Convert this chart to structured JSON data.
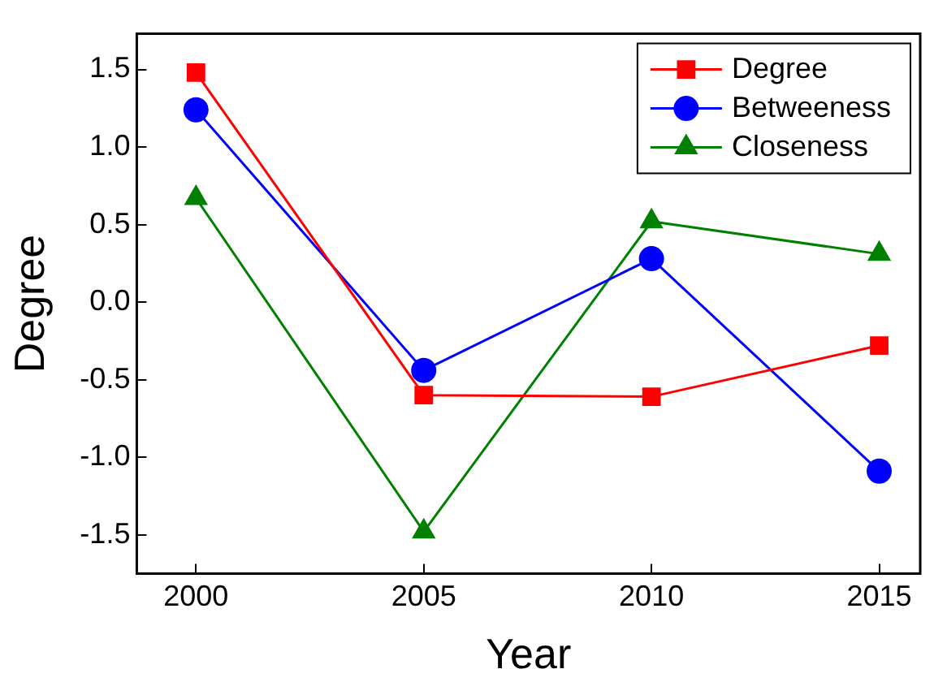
{
  "chart_data": {
    "type": "line",
    "xlabel": "Year",
    "ylabel": "Degree",
    "x": [
      2000,
      2005,
      2010,
      2015
    ],
    "series": [
      {
        "name": "Degree",
        "color": "#ff0000",
        "marker": "square",
        "values": [
          1.48,
          -0.6,
          -0.61,
          -0.28
        ]
      },
      {
        "name": "Betweeness",
        "color": "#0000ff",
        "marker": "circle",
        "values": [
          1.24,
          -0.44,
          0.28,
          -1.09
        ]
      },
      {
        "name": "Closeness",
        "color": "#008000",
        "marker": "triangle",
        "values": [
          0.67,
          -1.48,
          0.52,
          0.31
        ]
      }
    ],
    "xlim": [
      1998.7,
      2015.9
    ],
    "xticks": [
      2000,
      2005,
      2010,
      2015
    ],
    "ylim": [
      -1.75,
      1.73
    ],
    "yticks": [
      {
        "value": -1.5,
        "label": "-1.5"
      },
      {
        "value": -1,
        "label": "-1.0"
      },
      {
        "value": -0.5,
        "label": "-0.5"
      },
      {
        "value": 0,
        "label": "0.0"
      },
      {
        "value": 0.5,
        "label": "0.5"
      },
      {
        "value": 1,
        "label": "1.0"
      },
      {
        "value": 1.5,
        "label": "1.5"
      }
    ],
    "grid": false,
    "legend": "top right",
    "line_style": "solid"
  }
}
